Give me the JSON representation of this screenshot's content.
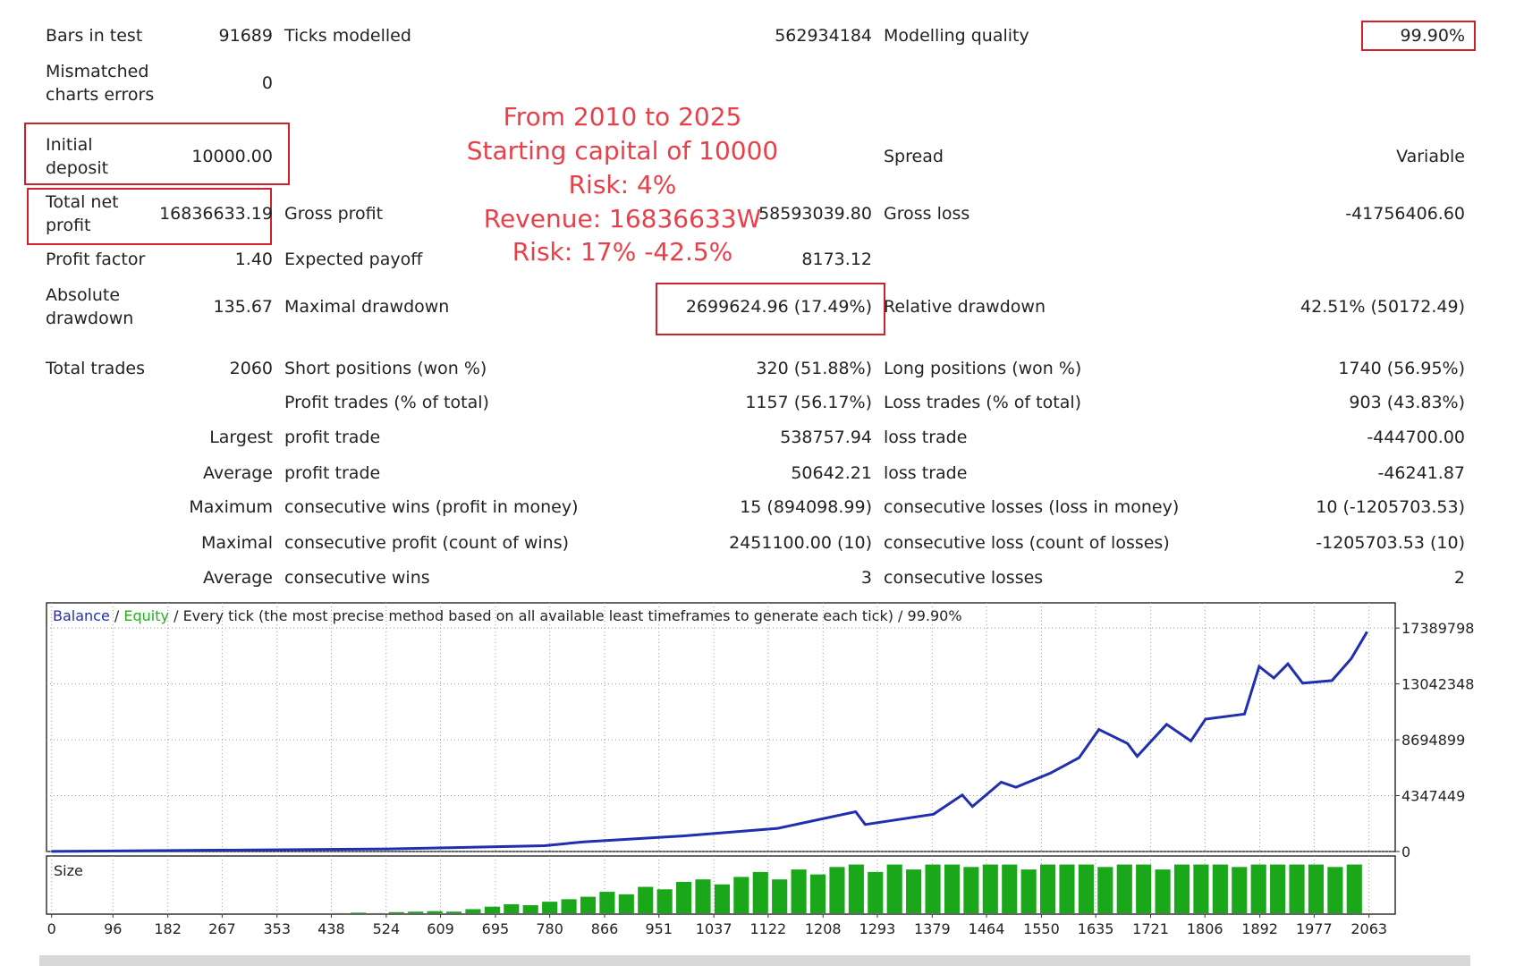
{
  "report": {
    "rows": [
      {
        "label": "Bars in test",
        "value": "91689",
        "label2": "Ticks modelled",
        "value2": "562934184",
        "label3": "Modelling quality",
        "value3": "99.90%"
      },
      {
        "label": "Mismatched\ncharts errors",
        "value": "0"
      },
      {
        "label": "Initial\ndeposit",
        "value": "10000.00",
        "label3": "Spread",
        "value3": "Variable"
      },
      {
        "label": "Total net\nprofit",
        "value": "16836633.19",
        "label2": "Gross profit",
        "value2": "58593039.80",
        "label3": "Gross loss",
        "value3": "-41756406.60"
      },
      {
        "label": "Profit factor",
        "value": "1.40",
        "label2": "Expected payoff",
        "value2": "8173.12"
      },
      {
        "label": "Absolute\ndrawdown",
        "value": "135.67",
        "label2": "Maximal drawdown",
        "value2": "2699624.96 (17.49%)",
        "label3": "Relative drawdown",
        "value3": "42.51% (50172.49)"
      },
      {
        "label": "Total trades",
        "value": "2060",
        "label2": "Short positions (won %)",
        "value2": "320 (51.88%)",
        "label3": "Long positions (won %)",
        "value3": "1740 (56.95%)"
      },
      {
        "label2": "Profit trades (% of total)",
        "value2": "1157 (56.17%)",
        "label3": "Loss trades (% of total)",
        "value3": "903 (43.83%)"
      },
      {
        "lead": "Largest",
        "label2": "profit trade",
        "value2": "538757.94",
        "label3": "loss trade",
        "value3": "-444700.00"
      },
      {
        "lead": "Average",
        "label2": "profit trade",
        "value2": "50642.21",
        "label3": "loss trade",
        "value3": "-46241.87"
      },
      {
        "lead": "Maximum",
        "label2": "consecutive wins (profit in money)",
        "value2": "15 (894098.99)",
        "label3": "consecutive losses (loss in money)",
        "value3": "10 (-1205703.53)"
      },
      {
        "lead": "Maximal",
        "label2": "consecutive profit (count of wins)",
        "value2": "2451100.00 (10)",
        "label3": "consecutive loss (count of losses)",
        "value3": "-1205703.53 (10)"
      },
      {
        "lead": "Average",
        "label2": "consecutive wins",
        "value2": "3",
        "label3": "consecutive losses",
        "value3": "2"
      }
    ]
  },
  "annotation": [
    "From 2010 to 2025",
    "Starting capital of 10000",
    "Risk:  4%",
    "Revenue: 16836633W",
    "Risk: 17% -42.5%"
  ],
  "chart_data": {
    "type": "line",
    "legend": [
      {
        "name": "Balance",
        "color": "#1f2fb0"
      },
      {
        "name": "Equity",
        "color": "#22b022"
      }
    ],
    "separator": "/",
    "legend_suffix": "Every tick (the most precise method based on all available least timeframes to generate each tick)",
    "quality": "99.90%",
    "x": [
      0,
      528,
      772,
      833,
      985,
      1137,
      1259,
      1274,
      1381,
      1426,
      1442,
      1487,
      1510,
      1564,
      1609,
      1640,
      1685,
      1700,
      1746,
      1784,
      1807,
      1868,
      1891,
      1914,
      1936,
      1959,
      2005,
      2035,
      2060
    ],
    "series": [
      {
        "name": "Balance",
        "color": "#1f2fb0",
        "values": [
          10000,
          200000,
          450000,
          750000,
          1200000,
          1800000,
          3100000,
          2100000,
          2900000,
          4400000,
          3500000,
          5400000,
          5000000,
          6100000,
          7300000,
          9500000,
          8400000,
          7400000,
          9900000,
          8600000,
          10300000,
          10700000,
          14400000,
          13500000,
          14600000,
          13100000,
          13300000,
          15000000,
          17100000
        ]
      }
    ],
    "xlim": [
      -8,
      2104
    ],
    "ylim": [
      0,
      19350000
    ],
    "yticks": [
      0,
      4347449,
      8694899,
      13042348,
      17389798
    ],
    "xticks": [
      0,
      96,
      182,
      267,
      353,
      438,
      524,
      609,
      695,
      780,
      866,
      951,
      1037,
      1122,
      1208,
      1293,
      1379,
      1464,
      1550,
      1635,
      1721,
      1806,
      1892,
      1977,
      2063
    ],
    "grid": true,
    "size": {
      "name": "Size",
      "color": "#1aa81a",
      "ylim": [
        0,
        110
      ],
      "x": [
        450,
        480,
        510,
        540,
        570,
        600,
        630,
        660,
        690,
        720,
        750,
        780,
        810,
        840,
        870,
        900,
        930,
        960,
        990,
        1020,
        1050,
        1080,
        1110,
        1140,
        1170,
        1200,
        1230,
        1260,
        1290,
        1320,
        1350,
        1380,
        1410,
        1440,
        1470,
        1500,
        1530,
        1560,
        1590,
        1620,
        1650,
        1680,
        1710,
        1740,
        1770,
        1800,
        1830,
        1860,
        1890,
        1920,
        1950,
        1980,
        2010,
        2040
      ],
      "values": [
        2,
        3,
        2,
        4,
        5,
        6,
        5,
        10,
        15,
        20,
        18,
        25,
        30,
        35,
        45,
        40,
        55,
        50,
        65,
        70,
        60,
        75,
        85,
        70,
        90,
        80,
        95,
        100,
        85,
        100,
        90,
        100,
        100,
        95,
        100,
        100,
        90,
        100,
        100,
        100,
        95,
        100,
        100,
        90,
        100,
        100,
        100,
        95,
        100,
        100,
        100,
        100,
        95,
        100
      ]
    }
  }
}
